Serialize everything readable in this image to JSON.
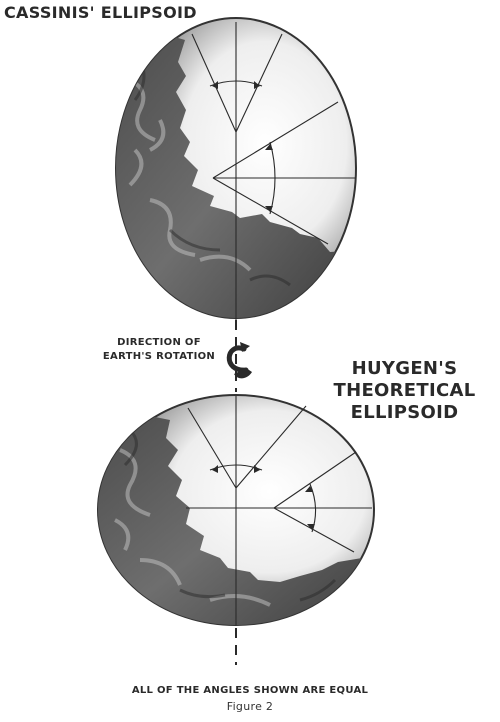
{
  "figure": {
    "title_top": "CASSINIS' ELLIPSOID",
    "direction_label_line1": "DIRECTION OF",
    "direction_label_line2": "EARTH'S ROTATION",
    "title_bottom_line1": "HUYGEN'S THEORETICAL",
    "title_bottom_line2": "ELLIPSOID",
    "footer_caption": "ALL OF THE ANGLES SHOWN ARE EQUAL",
    "figure_number": "Figure 2"
  },
  "colors": {
    "ink": "#2a2a2a",
    "land_dark": "#3a3a3a",
    "land_mid": "#7a7a7a",
    "globe_light": "#f5f5f5"
  }
}
